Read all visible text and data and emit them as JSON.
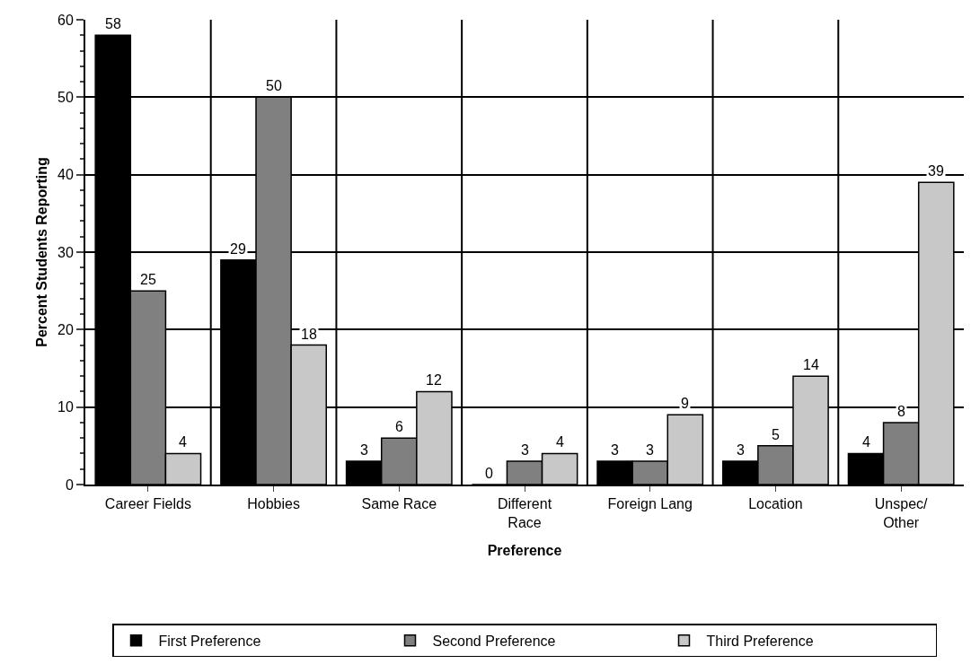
{
  "chart_data": {
    "type": "bar",
    "xlabel": "Preference",
    "ylabel": "Percent Students Reporting",
    "categories": [
      "Career Fields",
      "Hobbies",
      "Same Race",
      "Different\nRace",
      "Foreign Lang",
      "Location",
      "Unspec/\nOther"
    ],
    "series": [
      {
        "name": "First Preference",
        "color": "#000000",
        "values": [
          58,
          29,
          3,
          0,
          3,
          3,
          4
        ]
      },
      {
        "name": "Second Preference",
        "color": "#808080",
        "values": [
          25,
          50,
          6,
          3,
          3,
          5,
          8
        ]
      },
      {
        "name": "Third Preference",
        "color": "#c8c8c8",
        "values": [
          4,
          18,
          12,
          4,
          9,
          14,
          39
        ]
      }
    ],
    "ylim": [
      0,
      60
    ],
    "yticks": [
      0,
      10,
      20,
      30,
      40,
      50,
      60
    ],
    "grid": true,
    "legend": "bottom",
    "data_labels": true
  }
}
